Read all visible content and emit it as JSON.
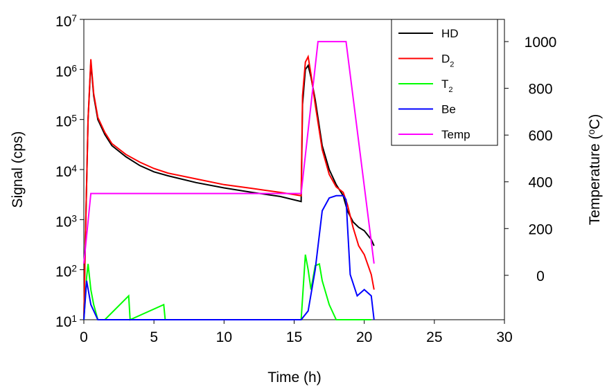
{
  "chart_data": {
    "type": "line",
    "xlabel": "Time (h)",
    "ylabel": "Signal (cps)",
    "y2label": "Temperature (^{o}C)",
    "xlim": [
      0,
      30
    ],
    "xticks": [
      0,
      5,
      10,
      15,
      20,
      25,
      30
    ],
    "ylim": [
      10,
      10000000
    ],
    "ylog": true,
    "yticks": [
      {
        "value": 10,
        "label": "10^{1}"
      },
      {
        "value": 100,
        "label": "10^{2}"
      },
      {
        "value": 1000,
        "label": "10^{3}"
      },
      {
        "value": 10000,
        "label": "10^{4}"
      },
      {
        "value": 100000,
        "label": "10^{5}"
      },
      {
        "value": 1000000,
        "label": "10^{6}"
      },
      {
        "value": 10000000,
        "label": "10^{7}"
      }
    ],
    "y2lim": [
      -190,
      1095
    ],
    "y2ticks": [
      0,
      200,
      400,
      600,
      800,
      1000
    ],
    "legend": "upper right",
    "series": [
      {
        "name": "HD",
        "color": "#000000",
        "x": [
          0,
          0.1,
          0.3,
          0.5,
          0.7,
          1,
          1.5,
          2,
          3,
          4,
          5,
          6,
          8,
          10,
          12,
          14,
          15.5,
          15.6,
          15.8,
          16,
          16.2,
          16.5,
          17,
          17.5,
          18,
          18.5,
          18.8,
          19.2,
          19.6,
          20,
          20.5,
          20.7
        ],
        "values": [
          10,
          300,
          100000,
          1400000,
          300000,
          100000,
          50000,
          30000,
          18000,
          12000,
          9000,
          7500,
          5500,
          4300,
          3500,
          2900,
          2300,
          200000,
          1000000,
          1200000,
          700000,
          250000,
          30000,
          10000,
          5000,
          3000,
          1500,
          900,
          700,
          600,
          400,
          300
        ]
      },
      {
        "name": "D_{2}",
        "color": "#ff0000",
        "x": [
          0,
          0.1,
          0.3,
          0.5,
          0.7,
          1,
          1.5,
          2,
          3,
          4,
          5,
          6,
          8,
          10,
          12,
          14,
          15.5,
          15.6,
          15.8,
          16,
          16.2,
          16.5,
          17,
          17.5,
          18,
          18.5,
          18.8,
          19.2,
          19.6,
          20,
          20.5,
          20.7
        ],
        "values": [
          10,
          300,
          100000,
          1600000,
          330000,
          110000,
          55000,
          33000,
          20000,
          14000,
          10500,
          8500,
          6500,
          5000,
          4200,
          3500,
          3000,
          300000,
          1400000,
          1800000,
          800000,
          200000,
          25000,
          8000,
          4500,
          3500,
          2000,
          700,
          300,
          200,
          80,
          40
        ]
      },
      {
        "name": "T_{2}",
        "color": "#00ff00",
        "x": [
          0,
          0.2,
          0.3,
          0.5,
          0.7,
          1,
          1.5,
          3.2,
          3.3,
          5.7,
          5.8,
          15.5,
          15.8,
          16,
          16.2,
          16.5,
          16.8,
          17,
          17.5,
          18,
          18.5,
          19,
          20.5
        ],
        "values": [
          10,
          70,
          130,
          40,
          20,
          10,
          10,
          30,
          10,
          20,
          10,
          10,
          200,
          100,
          40,
          120,
          130,
          60,
          20,
          10,
          10,
          10,
          10
        ]
      },
      {
        "name": "Be",
        "color": "#0000ff",
        "x": [
          0,
          0.2,
          0.5,
          1,
          15.5,
          16,
          16.5,
          17,
          17.5,
          18,
          18.5,
          18.7,
          19,
          19.5,
          20,
          20.5,
          20.7
        ],
        "values": [
          10,
          60,
          20,
          10,
          10,
          15,
          100,
          1500,
          2700,
          3000,
          3000,
          2500,
          80,
          30,
          40,
          30,
          10
        ]
      },
      {
        "name": "Temp",
        "color": "#ff00ff",
        "axis": "y2",
        "x": [
          0,
          0.5,
          15.5,
          16.7,
          18.7,
          20.7
        ],
        "values": [
          50,
          350,
          350,
          1000,
          1000,
          50
        ]
      }
    ]
  }
}
